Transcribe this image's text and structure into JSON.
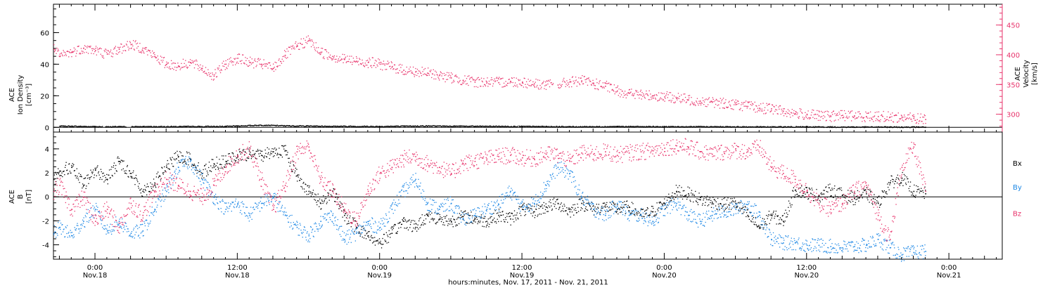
{
  "chart_data": [
    {
      "type": "scatter",
      "panel": "top",
      "xlabel": "hours:minutes, Nov. 17, 2011 - Nov. 21, 2011",
      "x_unit": "hours since Nov. 17, 2011 0:00",
      "xlim": [
        20.5,
        100.5
      ],
      "x_ticks": [
        {
          "x": 24,
          "label": "0:00",
          "sub": "Nov.18"
        },
        {
          "x": 36,
          "label": "12:00",
          "sub": "Nov.18"
        },
        {
          "x": 48,
          "label": "0:00",
          "sub": "Nov.19"
        },
        {
          "x": 60,
          "label": "12:00",
          "sub": "Nov.19"
        },
        {
          "x": 72,
          "label": "0:00",
          "sub": "Nov.20"
        },
        {
          "x": 84,
          "label": "12:00",
          "sub": "Nov.20"
        },
        {
          "x": 96,
          "label": "0:00",
          "sub": "Nov.21"
        }
      ],
      "left_axis": {
        "label_lines": [
          "ACE",
          "Ion Density",
          "[cm⁻³]"
        ],
        "ylim": [
          -3,
          78
        ],
        "ticks": [
          0,
          20,
          40,
          60
        ]
      },
      "right_axis": {
        "label_lines": [
          "ACE",
          "Velocity",
          "[km/s]"
        ],
        "ylim": [
          270,
          485
        ],
        "ticks": [
          300,
          350,
          400,
          450
        ],
        "color": "#e8336b"
      },
      "series": [
        {
          "name": "Velocity",
          "axis": "right",
          "color": "#e8336b",
          "x": [
            20.5,
            21,
            22,
            23,
            24,
            25,
            26,
            27,
            28,
            29,
            30,
            31,
            32,
            33,
            34,
            35,
            36,
            37,
            38,
            39,
            40,
            41,
            42,
            43,
            44,
            45,
            46,
            47,
            48,
            49,
            50,
            51,
            52,
            53,
            54,
            55,
            56,
            57,
            58,
            59,
            60,
            61,
            62,
            63,
            64,
            65,
            66,
            67,
            68,
            69,
            70,
            71,
            72,
            73,
            74,
            75,
            76,
            77,
            78,
            79,
            80,
            81,
            82,
            83,
            84,
            85,
            86,
            87,
            88,
            89,
            90,
            91,
            92,
            93,
            94
          ],
          "values": [
            410,
            398,
            405,
            412,
            408,
            402,
            410,
            418,
            412,
            398,
            385,
            382,
            388,
            378,
            365,
            385,
            395,
            388,
            385,
            378,
            400,
            415,
            425,
            405,
            398,
            393,
            390,
            388,
            385,
            380,
            375,
            372,
            370,
            366,
            362,
            358,
            355,
            355,
            354,
            356,
            355,
            352,
            350,
            350,
            355,
            357,
            352,
            348,
            340,
            336,
            333,
            332,
            330,
            328,
            325,
            323,
            321,
            319,
            317,
            314,
            311,
            310,
            306,
            302,
            300,
            298,
            297,
            299,
            298,
            297,
            297,
            296,
            295,
            294,
            292
          ]
        },
        {
          "name": "Ion Density",
          "axis": "left",
          "color": "#000000",
          "x": [
            21,
            25,
            30,
            35,
            38,
            40,
            44,
            48,
            52,
            56,
            60,
            64,
            68,
            72,
            76,
            80,
            84,
            88,
            92,
            94
          ],
          "values": [
            1.0,
            0.6,
            0.7,
            0.8,
            1.6,
            1.2,
            0.9,
            0.8,
            1.1,
            0.9,
            0.8,
            0.6,
            0.7,
            0.6,
            0.6,
            0.5,
            0.5,
            0.4,
            0.4,
            0.4
          ]
        }
      ]
    },
    {
      "type": "scatter",
      "panel": "bottom",
      "xlim": [
        20.5,
        100.5
      ],
      "left_axis": {
        "label_lines": [
          "ACE",
          "B",
          "[nT]"
        ],
        "ylim": [
          -5.2,
          5.4
        ],
        "ticks": [
          -4,
          -2,
          0,
          2,
          4
        ]
      },
      "legend_position": "right",
      "series": [
        {
          "name": "Bx",
          "color": "#000000",
          "x": [
            20.5,
            21,
            22,
            23,
            24,
            25,
            26,
            27,
            28,
            29,
            30,
            31,
            32,
            33,
            34,
            35,
            36,
            37,
            38,
            39,
            40,
            41,
            42,
            43,
            44,
            45,
            46,
            47,
            48,
            49,
            50,
            51,
            52,
            53,
            54,
            55,
            56,
            57,
            58,
            59,
            60,
            61,
            62,
            63,
            64,
            65,
            66,
            67,
            68,
            69,
            70,
            71,
            72,
            73,
            74,
            75,
            76,
            77,
            78,
            79,
            80,
            81,
            82,
            83,
            84,
            85,
            86,
            87,
            88,
            89,
            90,
            91,
            92,
            93,
            94
          ],
          "values": [
            1.5,
            2.2,
            2.5,
            1.0,
            2.3,
            1.5,
            3.0,
            2.0,
            0.5,
            1.2,
            2.5,
            3.4,
            3.2,
            2.0,
            2.8,
            3.0,
            3.4,
            3.6,
            3.5,
            3.8,
            3.9,
            1.8,
            0.5,
            -0.5,
            0.5,
            -1.5,
            -2.5,
            -3.2,
            -3.8,
            -3.0,
            -2.0,
            -2.5,
            -1.5,
            -1.8,
            -2.0,
            -1.6,
            -1.8,
            -2.0,
            -1.5,
            -1.8,
            -1.0,
            -1.2,
            -0.8,
            -0.5,
            -1.2,
            -0.5,
            -1.0,
            -0.8,
            -1.0,
            -0.8,
            -1.5,
            -1.2,
            -0.5,
            0.5,
            0.3,
            -0.2,
            -0.4,
            -0.6,
            -0.5,
            -1.5,
            -2.5,
            -1.5,
            -2.0,
            0.6,
            0.4,
            0.1,
            0.6,
            0.2,
            -0.1,
            0.3,
            -0.5,
            1.2,
            1.6,
            0.5,
            0.3
          ]
        },
        {
          "name": "By",
          "color": "#1e88e5",
          "x": [
            20.5,
            21,
            22,
            23,
            24,
            25,
            26,
            27,
            28,
            29,
            30,
            31,
            32,
            33,
            34,
            35,
            36,
            37,
            38,
            39,
            40,
            41,
            42,
            43,
            44,
            45,
            46,
            47,
            48,
            49,
            50,
            51,
            52,
            53,
            54,
            55,
            56,
            57,
            58,
            59,
            60,
            61,
            62,
            63,
            64,
            65,
            66,
            67,
            68,
            69,
            70,
            71,
            72,
            73,
            74,
            75,
            76,
            77,
            78,
            79,
            80,
            81,
            82,
            83,
            84,
            85,
            86,
            87,
            88,
            89,
            90,
            91,
            92,
            93,
            94
          ],
          "values": [
            -3.0,
            -2.5,
            -3.2,
            -2.0,
            -1.0,
            -2.8,
            -2.0,
            -3.0,
            -2.8,
            -1.0,
            0.5,
            2.5,
            3.0,
            1.5,
            0.0,
            -1.0,
            -0.5,
            -1.5,
            -0.5,
            0.0,
            -1.5,
            -2.5,
            -3.2,
            -2.0,
            -1.5,
            -3.5,
            -3.0,
            -2.2,
            -2.5,
            -1.0,
            0.5,
            1.5,
            -0.5,
            -1.0,
            -0.5,
            -1.8,
            -1.5,
            -1.0,
            -0.6,
            0.5,
            -0.8,
            -0.5,
            1.0,
            2.5,
            2.0,
            0.0,
            -1.0,
            -1.5,
            -0.5,
            -1.5,
            -1.5,
            -2.0,
            -1.0,
            -0.5,
            -1.5,
            -2.0,
            -1.5,
            -1.2,
            -1.0,
            -0.6,
            -1.5,
            -3.5,
            -3.8,
            -3.8,
            -4.0,
            -4.0,
            -4.1,
            -4.2,
            -4.1,
            -4.0,
            -3.5,
            -4.2,
            -4.8,
            -4.6,
            -4.5
          ]
        },
        {
          "name": "Bz",
          "color": "#e8336b",
          "x": [
            20.5,
            21,
            22,
            23,
            24,
            25,
            26,
            27,
            28,
            29,
            30,
            31,
            32,
            33,
            34,
            35,
            36,
            37,
            38,
            39,
            40,
            41,
            42,
            43,
            44,
            45,
            46,
            47,
            48,
            49,
            50,
            51,
            52,
            53,
            54,
            55,
            56,
            57,
            58,
            59,
            60,
            61,
            62,
            63,
            64,
            65,
            66,
            67,
            68,
            69,
            70,
            71,
            72,
            73,
            74,
            75,
            76,
            77,
            78,
            79,
            80,
            81,
            82,
            83,
            84,
            85,
            86,
            87,
            88,
            89,
            90,
            91,
            92,
            93,
            94
          ],
          "values": [
            0.5,
            1.0,
            -1.0,
            0.0,
            -2.0,
            -1.0,
            -2.5,
            -0.5,
            -1.5,
            0.5,
            1.5,
            1.0,
            0.5,
            0.0,
            1.0,
            2.5,
            3.5,
            4.0,
            1.5,
            -1.0,
            1.0,
            3.8,
            4.2,
            1.5,
            0.5,
            -1.0,
            -2.0,
            0.5,
            2.0,
            2.5,
            3.2,
            3.4,
            2.8,
            2.5,
            2.0,
            2.8,
            3.0,
            3.2,
            3.4,
            3.5,
            3.3,
            3.2,
            3.6,
            3.5,
            3.0,
            3.7,
            3.6,
            3.8,
            3.5,
            3.7,
            3.8,
            3.9,
            4.1,
            4.3,
            4.2,
            3.8,
            3.6,
            3.8,
            3.9,
            3.8,
            4.2,
            2.5,
            2.0,
            1.5,
            0.5,
            -0.5,
            -1.0,
            -0.5,
            0.5,
            1.0,
            -1.5,
            -3.5,
            2.5,
            4.2,
            0.5
          ]
        }
      ]
    }
  ]
}
